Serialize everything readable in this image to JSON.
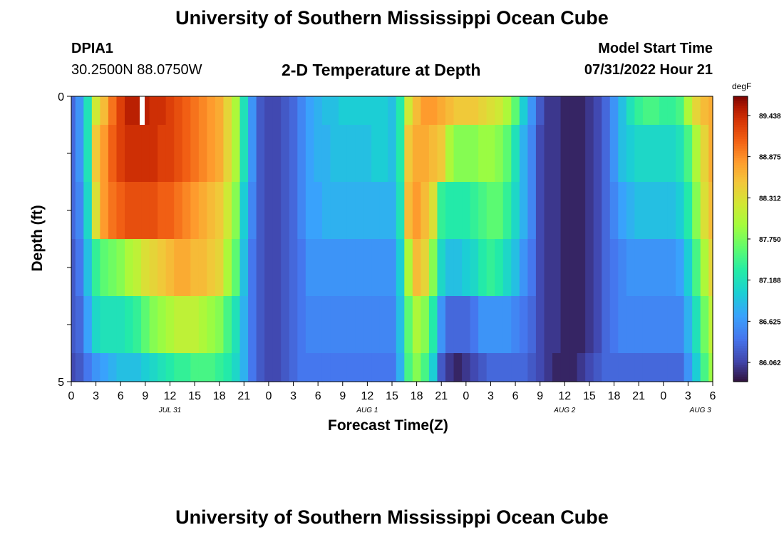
{
  "header": {
    "title": "University of Southern Mississippi Ocean Cube",
    "station_id": "DPIA1",
    "station_coords": "30.2500N  88.0750W",
    "subtitle": "2-D Temperature at Depth",
    "model_start_label": "Model Start Time",
    "model_start_value": "07/31/2022 Hour 21"
  },
  "footer": {
    "title": "University of Southern Mississippi Ocean Cube"
  },
  "chart_data": {
    "type": "heatmap",
    "xlabel": "Forecast Time(Z)",
    "ylabel": "Depth (ft)",
    "colorbar_unit": "degF",
    "colorbar_ticks": [
      "89.438",
      "88.875",
      "88.312",
      "87.750",
      "87.188",
      "86.625",
      "86.062"
    ],
    "color_range": [
      85.8,
      89.7
    ],
    "y_range": [
      0,
      5
    ],
    "y_tick_labels": [
      "0",
      "5"
    ],
    "x_range_hours": [
      0,
      78
    ],
    "x_tick_labels": [
      "0",
      "3",
      "6",
      "9",
      "12",
      "15",
      "18",
      "21",
      "0",
      "3",
      "6",
      "9",
      "12",
      "15",
      "18",
      "21",
      "0",
      "3",
      "6",
      "9",
      "12",
      "15",
      "18",
      "21",
      "0",
      "3",
      "6"
    ],
    "date_labels": [
      "JUL 31",
      "AUG 1",
      "AUG 2",
      "AUG 3"
    ],
    "depth_rows": [
      "0-0.5",
      "0.5-1.5",
      "1.5-2.5",
      "2.5-3.5",
      "3.5-4.5",
      "4.5-5"
    ],
    "series": [
      {
        "name": "0-0.5",
        "x": [
          0,
          1,
          2,
          3,
          4,
          5,
          6,
          7,
          8,
          9,
          10,
          11,
          12,
          13,
          14,
          15,
          16,
          17,
          18,
          19,
          20,
          21,
          22,
          23,
          24,
          25,
          26,
          27,
          28,
          29,
          30,
          31,
          32,
          33,
          34,
          35,
          36,
          37,
          38,
          39,
          40,
          41,
          42,
          43,
          44,
          45,
          46,
          47,
          48,
          49,
          50,
          51,
          52,
          53,
          54,
          55,
          56,
          57,
          58,
          59,
          60,
          61,
          62,
          63,
          64,
          65,
          66,
          67,
          68,
          69,
          70,
          71,
          72,
          73,
          74,
          75,
          76,
          77,
          78
        ],
        "values": [
          86.3,
          86.6,
          87.2,
          88.2,
          88.6,
          89.0,
          89.3,
          89.5,
          89.5,
          89.5,
          89.4,
          89.4,
          89.3,
          89.2,
          89.1,
          89.0,
          88.9,
          88.8,
          88.7,
          88.4,
          88.0,
          87.2,
          86.6,
          86.2,
          86.1,
          86.1,
          86.2,
          86.3,
          86.5,
          86.7,
          86.8,
          86.9,
          86.9,
          87.0,
          87.0,
          87.0,
          87.0,
          87.0,
          87.0,
          86.9,
          87.3,
          88.2,
          88.6,
          88.8,
          88.8,
          88.7,
          88.6,
          88.5,
          88.5,
          88.5,
          88.4,
          88.3,
          88.2,
          88.0,
          87.6,
          87.0,
          86.6,
          86.2,
          86.0,
          86.0,
          85.9,
          85.9,
          85.9,
          86.0,
          86.1,
          86.3,
          86.6,
          86.9,
          87.2,
          87.4,
          87.5,
          87.5,
          87.4,
          87.4,
          87.5,
          88.0,
          88.4,
          88.6,
          88.7
        ]
      },
      {
        "name": "0.5-1.5",
        "x": [
          0,
          1,
          2,
          3,
          4,
          5,
          6,
          7,
          8,
          9,
          10,
          11,
          12,
          13,
          14,
          15,
          16,
          17,
          18,
          19,
          20,
          21,
          22,
          23,
          24,
          25,
          26,
          27,
          28,
          29,
          30,
          31,
          32,
          33,
          34,
          35,
          36,
          37,
          38,
          39,
          40,
          41,
          42,
          43,
          44,
          45,
          46,
          47,
          48,
          49,
          50,
          51,
          52,
          53,
          54,
          55,
          56,
          57,
          58,
          59,
          60,
          61,
          62,
          63,
          64,
          65,
          66,
          67,
          68,
          69,
          70,
          71,
          72,
          73,
          74,
          75,
          76,
          77,
          78
        ],
        "values": [
          86.3,
          86.6,
          87.2,
          88.5,
          88.8,
          89.1,
          89.3,
          89.4,
          89.4,
          89.4,
          89.4,
          89.3,
          89.3,
          89.2,
          89.1,
          89.0,
          88.9,
          88.8,
          88.7,
          88.4,
          88.0,
          87.2,
          86.6,
          86.2,
          86.1,
          86.1,
          86.2,
          86.3,
          86.5,
          86.7,
          86.8,
          86.8,
          86.9,
          86.9,
          86.9,
          86.9,
          86.9,
          87.0,
          87.0,
          86.9,
          87.3,
          88.5,
          88.7,
          88.7,
          88.6,
          88.5,
          88.0,
          87.8,
          87.8,
          87.8,
          87.9,
          87.9,
          87.8,
          87.6,
          87.2,
          86.8,
          86.5,
          86.1,
          86.0,
          86.0,
          85.9,
          85.9,
          85.9,
          86.0,
          86.1,
          86.3,
          86.6,
          86.9,
          87.0,
          87.1,
          87.1,
          87.1,
          87.1,
          87.1,
          87.2,
          87.5,
          88.0,
          88.4,
          88.7
        ]
      },
      {
        "name": "1.5-2.5",
        "x": [
          0,
          1,
          2,
          3,
          4,
          5,
          6,
          7,
          8,
          9,
          10,
          11,
          12,
          13,
          14,
          15,
          16,
          17,
          18,
          19,
          20,
          21,
          22,
          23,
          24,
          25,
          26,
          27,
          28,
          29,
          30,
          31,
          32,
          33,
          34,
          35,
          36,
          37,
          38,
          39,
          40,
          41,
          42,
          43,
          44,
          45,
          46,
          47,
          48,
          49,
          50,
          51,
          52,
          53,
          54,
          55,
          56,
          57,
          58,
          59,
          60,
          61,
          62,
          63,
          64,
          65,
          66,
          67,
          68,
          69,
          70,
          71,
          72,
          73,
          74,
          75,
          76,
          77,
          78
        ],
        "values": [
          86.3,
          86.5,
          87.1,
          88.3,
          88.8,
          89.0,
          89.1,
          89.2,
          89.2,
          89.2,
          89.2,
          89.1,
          89.1,
          89.0,
          88.9,
          88.8,
          88.7,
          88.6,
          88.5,
          88.2,
          87.8,
          87.0,
          86.5,
          86.2,
          86.1,
          86.1,
          86.2,
          86.3,
          86.5,
          86.7,
          86.7,
          86.8,
          86.8,
          86.8,
          86.8,
          86.8,
          86.8,
          86.8,
          86.8,
          86.8,
          87.2,
          88.6,
          88.8,
          88.6,
          88.3,
          87.4,
          87.3,
          87.3,
          87.3,
          87.4,
          87.5,
          87.6,
          87.6,
          87.4,
          87.1,
          86.8,
          86.5,
          86.1,
          86.0,
          86.0,
          85.9,
          85.9,
          85.9,
          86.0,
          86.1,
          86.3,
          86.5,
          86.7,
          86.8,
          86.9,
          86.9,
          86.9,
          86.9,
          86.9,
          87.0,
          87.3,
          87.8,
          88.3,
          88.6
        ]
      },
      {
        "name": "2.5-3.5",
        "x": [
          0,
          1,
          2,
          3,
          4,
          5,
          6,
          7,
          8,
          9,
          10,
          11,
          12,
          13,
          14,
          15,
          16,
          17,
          18,
          19,
          20,
          21,
          22,
          23,
          24,
          25,
          26,
          27,
          28,
          29,
          30,
          31,
          32,
          33,
          34,
          35,
          36,
          37,
          38,
          39,
          40,
          41,
          42,
          43,
          44,
          45,
          46,
          47,
          48,
          49,
          50,
          51,
          52,
          53,
          54,
          55,
          56,
          57,
          58,
          59,
          60,
          61,
          62,
          63,
          64,
          65,
          66,
          67,
          68,
          69,
          70,
          71,
          72,
          73,
          74,
          75,
          76,
          77,
          78
        ],
        "values": [
          86.2,
          86.4,
          86.9,
          87.4,
          87.6,
          87.7,
          87.8,
          88.0,
          88.1,
          88.3,
          88.4,
          88.5,
          88.6,
          88.7,
          88.7,
          88.6,
          88.6,
          88.5,
          88.4,
          88.0,
          87.6,
          86.9,
          86.4,
          86.2,
          86.1,
          86.1,
          86.2,
          86.3,
          86.4,
          86.6,
          86.6,
          86.6,
          86.6,
          86.6,
          86.6,
          86.6,
          86.6,
          86.6,
          86.6,
          86.6,
          87.0,
          88.0,
          88.6,
          88.4,
          87.8,
          87.1,
          86.9,
          86.9,
          87.0,
          87.1,
          87.3,
          87.4,
          87.3,
          87.1,
          86.9,
          86.6,
          86.4,
          86.1,
          86.0,
          86.0,
          85.9,
          85.9,
          85.9,
          86.0,
          86.1,
          86.3,
          86.4,
          86.5,
          86.6,
          86.6,
          86.6,
          86.6,
          86.6,
          86.6,
          86.7,
          87.0,
          87.5,
          88.0,
          88.4
        ]
      },
      {
        "name": "3.5-4.5",
        "x": [
          0,
          1,
          2,
          3,
          4,
          5,
          6,
          7,
          8,
          9,
          10,
          11,
          12,
          13,
          14,
          15,
          16,
          17,
          18,
          19,
          20,
          21,
          22,
          23,
          24,
          25,
          26,
          27,
          28,
          29,
          30,
          31,
          32,
          33,
          34,
          35,
          36,
          37,
          38,
          39,
          40,
          41,
          42,
          43,
          44,
          45,
          46,
          47,
          48,
          49,
          50,
          51,
          52,
          53,
          54,
          55,
          56,
          57,
          58,
          59,
          60,
          61,
          62,
          63,
          64,
          65,
          66,
          67,
          68,
          69,
          70,
          71,
          72,
          73,
          74,
          75,
          76,
          77,
          78
        ],
        "values": [
          86.2,
          86.3,
          86.7,
          87.1,
          87.2,
          87.2,
          87.2,
          87.3,
          87.4,
          87.6,
          87.8,
          87.9,
          88.0,
          88.1,
          88.1,
          88.1,
          88.0,
          87.9,
          87.8,
          87.5,
          87.2,
          86.8,
          86.4,
          86.2,
          86.1,
          86.1,
          86.2,
          86.3,
          86.4,
          86.5,
          86.5,
          86.5,
          86.5,
          86.5,
          86.5,
          86.5,
          86.5,
          86.5,
          86.5,
          86.5,
          86.9,
          87.6,
          88.0,
          87.8,
          87.3,
          86.6,
          86.3,
          86.3,
          86.3,
          86.4,
          86.6,
          86.6,
          86.6,
          86.6,
          86.5,
          86.4,
          86.3,
          86.1,
          86.0,
          86.0,
          85.9,
          85.9,
          85.9,
          86.0,
          86.1,
          86.3,
          86.4,
          86.5,
          86.5,
          86.5,
          86.5,
          86.5,
          86.5,
          86.5,
          86.5,
          86.8,
          87.2,
          87.7,
          88.1
        ]
      },
      {
        "name": "4.5-5",
        "x": [
          0,
          1,
          2,
          3,
          4,
          5,
          6,
          7,
          8,
          9,
          10,
          11,
          12,
          13,
          14,
          15,
          16,
          17,
          18,
          19,
          20,
          21,
          22,
          23,
          24,
          25,
          26,
          27,
          28,
          29,
          30,
          31,
          32,
          33,
          34,
          35,
          36,
          37,
          38,
          39,
          40,
          41,
          42,
          43,
          44,
          45,
          46,
          47,
          48,
          49,
          50,
          51,
          52,
          53,
          54,
          55,
          56,
          57,
          58,
          59,
          60,
          61,
          62,
          63,
          64,
          65,
          66,
          67,
          68,
          69,
          70,
          71,
          72,
          73,
          74,
          75,
          76,
          77,
          78
        ],
        "values": [
          86.1,
          86.2,
          86.4,
          86.6,
          86.7,
          86.8,
          86.9,
          86.9,
          86.9,
          87.0,
          87.1,
          87.2,
          87.3,
          87.4,
          87.4,
          87.5,
          87.5,
          87.5,
          87.4,
          87.3,
          87.1,
          86.8,
          86.4,
          86.2,
          86.1,
          86.1,
          86.2,
          86.3,
          86.4,
          86.4,
          86.4,
          86.4,
          86.4,
          86.4,
          86.4,
          86.4,
          86.4,
          86.4,
          86.4,
          86.4,
          86.8,
          87.5,
          87.8,
          87.5,
          87.0,
          86.2,
          86.0,
          85.9,
          86.0,
          86.1,
          86.2,
          86.3,
          86.3,
          86.3,
          86.3,
          86.3,
          86.2,
          86.1,
          86.0,
          85.9,
          85.9,
          85.9,
          86.0,
          86.1,
          86.2,
          86.3,
          86.3,
          86.3,
          86.3,
          86.3,
          86.3,
          86.3,
          86.3,
          86.3,
          86.3,
          86.6,
          87.0,
          87.5,
          87.9
        ]
      }
    ]
  }
}
